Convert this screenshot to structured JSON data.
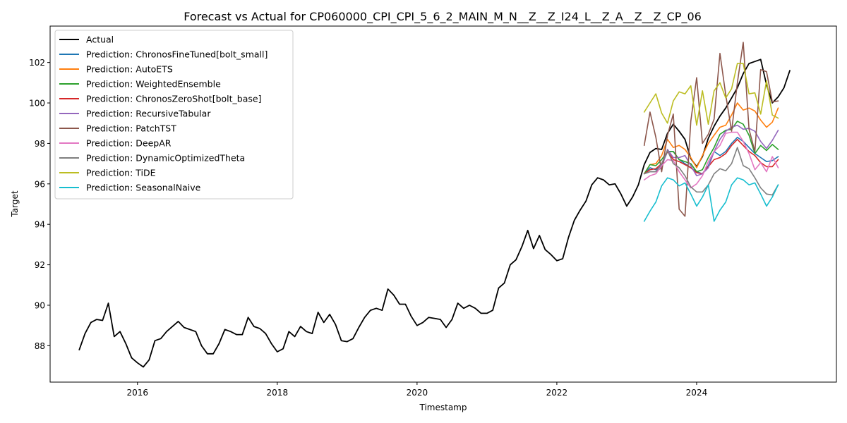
{
  "chart_data": {
    "type": "line",
    "title": "Forecast vs Actual for CP060000_CPI_CPI_5_6_2_MAIN_M_N__Z__Z_I24_L__Z_A__Z__Z_CP_06",
    "xlabel": "Timestamp",
    "ylabel": "Target",
    "xlim": [
      "2014-10-01",
      "2026-01-01"
    ],
    "ylim": [
      86.2,
      103.8
    ],
    "x_ticks": [
      "2016",
      "2018",
      "2020",
      "2022",
      "2024"
    ],
    "y_ticks": [
      88,
      90,
      92,
      94,
      96,
      98,
      100,
      102
    ],
    "legend_position": "upper left",
    "grid": false,
    "actual": {
      "name": "Actual",
      "color": "#000000",
      "start": "2015-03",
      "values": [
        87.8,
        88.6,
        89.15,
        89.3,
        89.25,
        90.1,
        88.45,
        88.7,
        88.1,
        87.4,
        87.15,
        86.95,
        87.3,
        88.25,
        88.35,
        88.7,
        88.95,
        89.2,
        88.9,
        88.8,
        88.7,
        88.0,
        87.6,
        87.6,
        88.1,
        88.8,
        88.7,
        88.55,
        88.55,
        89.4,
        88.95,
        88.85,
        88.6,
        88.1,
        87.7,
        87.85,
        88.7,
        88.45,
        88.95,
        88.7,
        88.6,
        89.65,
        89.15,
        89.55,
        89.05,
        88.25,
        88.2,
        88.35,
        88.9,
        89.4,
        89.75,
        89.85,
        89.75,
        90.8,
        90.5,
        90.05,
        90.05,
        89.45,
        89.0,
        89.15,
        89.4,
        89.35,
        89.3,
        88.9,
        89.3,
        90.1,
        89.85,
        90.0,
        89.85,
        89.6,
        89.6,
        89.75,
        90.85,
        91.1,
        92.0,
        92.25,
        92.9,
        93.7,
        92.8,
        93.45,
        92.75,
        92.5,
        92.2,
        92.3,
        93.35,
        94.2,
        94.7,
        95.15,
        95.95,
        96.3,
        96.2,
        95.95,
        96.0,
        95.5,
        94.9,
        95.35,
        95.95,
        96.95,
        97.55,
        97.75,
        97.7,
        98.5,
        98.95,
        98.6,
        98.2,
        97.25,
        96.85,
        97.35,
        98.25,
        98.85,
        99.35,
        99.75,
        100.25,
        100.75,
        101.45,
        101.95,
        102.05,
        102.15,
        100.9,
        100.0,
        100.3,
        100.75,
        101.6
      ]
    },
    "forecast_start": "2023-04",
    "series": [
      {
        "name": "Prediction: ChronosFineTuned[bolt_small]",
        "color": "#1f77b4",
        "values": [
          96.5,
          96.8,
          96.7,
          96.9,
          97.6,
          97.6,
          97.2,
          97.0,
          96.8,
          96.6,
          96.5,
          96.9,
          97.6,
          97.4,
          97.6,
          98.0,
          98.3,
          98.1,
          97.8,
          97.5,
          97.3,
          97.1,
          97.15,
          97.35
        ]
      },
      {
        "name": "Prediction: AutoETS",
        "color": "#ff7f0e",
        "values": [
          96.5,
          96.95,
          97.0,
          97.4,
          98.2,
          97.8,
          97.9,
          97.7,
          97.3,
          96.8,
          97.4,
          98.0,
          98.4,
          98.8,
          98.9,
          99.4,
          100.0,
          99.65,
          99.75,
          99.6,
          99.15,
          98.8,
          99.05,
          99.75
        ]
      },
      {
        "name": "Prediction: WeightedEnsemble",
        "color": "#2ca02c",
        "values": [
          96.5,
          96.95,
          96.9,
          97.2,
          97.6,
          97.6,
          97.2,
          97.1,
          97.0,
          96.6,
          96.7,
          97.3,
          97.8,
          98.45,
          98.65,
          98.7,
          99.1,
          98.95,
          98.4,
          97.5,
          97.9,
          97.65,
          97.95,
          97.7
        ]
      },
      {
        "name": "Prediction: ChronosZeroShot[bolt_base]",
        "color": "#d62728",
        "values": [
          96.5,
          96.7,
          96.75,
          97.0,
          97.6,
          97.2,
          97.1,
          96.95,
          96.8,
          96.55,
          96.5,
          96.85,
          97.2,
          97.3,
          97.5,
          97.9,
          98.2,
          97.9,
          97.6,
          97.4,
          97.05,
          96.85,
          96.85,
          97.2
        ]
      },
      {
        "name": "Prediction: RecursiveTabular",
        "color": "#9467bd",
        "values": [
          96.5,
          96.6,
          96.6,
          96.8,
          97.7,
          97.3,
          97.3,
          97.4,
          96.9,
          96.4,
          96.5,
          96.8,
          97.6,
          98.2,
          98.6,
          98.8,
          98.9,
          98.7,
          98.75,
          98.6,
          98.1,
          97.75,
          98.15,
          98.65
        ]
      },
      {
        "name": "Prediction: PatchTST",
        "color": "#8c564b",
        "values": [
          97.9,
          99.55,
          98.3,
          96.6,
          98.4,
          99.45,
          94.75,
          94.4,
          99.1,
          101.25,
          98.0,
          98.45,
          99.2,
          102.45,
          100.4,
          98.6,
          101.0,
          103.0,
          98.7,
          97.6,
          101.65,
          101.55,
          100.05,
          100.1
        ]
      },
      {
        "name": "Prediction: DeepAR",
        "color": "#e377c2",
        "values": [
          96.2,
          96.4,
          96.5,
          96.9,
          97.2,
          97.15,
          96.6,
          96.2,
          95.8,
          96.0,
          96.4,
          97.1,
          97.6,
          97.9,
          98.5,
          98.55,
          98.55,
          98.1,
          97.5,
          96.7,
          97.05,
          96.6,
          97.35,
          96.8
        ]
      },
      {
        "name": "Prediction: DynamicOptimizedTheta",
        "color": "#7f7f7f",
        "values": [
          96.5,
          96.6,
          96.6,
          97.0,
          97.65,
          97.0,
          96.8,
          96.4,
          95.85,
          95.6,
          95.6,
          95.95,
          96.5,
          96.75,
          96.65,
          97.0,
          97.8,
          96.9,
          96.75,
          96.3,
          95.8,
          95.5,
          95.45,
          95.95
        ]
      },
      {
        "name": "Prediction: TiDE",
        "color": "#bcbd22",
        "values": [
          99.55,
          100.0,
          100.45,
          99.5,
          99.0,
          100.1,
          100.55,
          100.45,
          100.85,
          98.9,
          100.6,
          98.95,
          100.6,
          101.0,
          100.25,
          100.7,
          101.95,
          101.95,
          100.45,
          100.5,
          99.45,
          101.1,
          99.4,
          99.25
        ]
      },
      {
        "name": "Prediction: SeasonalNaive",
        "color": "#17becf",
        "values": [
          94.15,
          94.65,
          95.1,
          95.9,
          96.3,
          96.2,
          95.9,
          96.05,
          95.5,
          94.9,
          95.35,
          95.95,
          94.15,
          94.7,
          95.1,
          95.95,
          96.3,
          96.2,
          95.95,
          96.05,
          95.5,
          94.9,
          95.35,
          95.95
        ]
      }
    ]
  }
}
